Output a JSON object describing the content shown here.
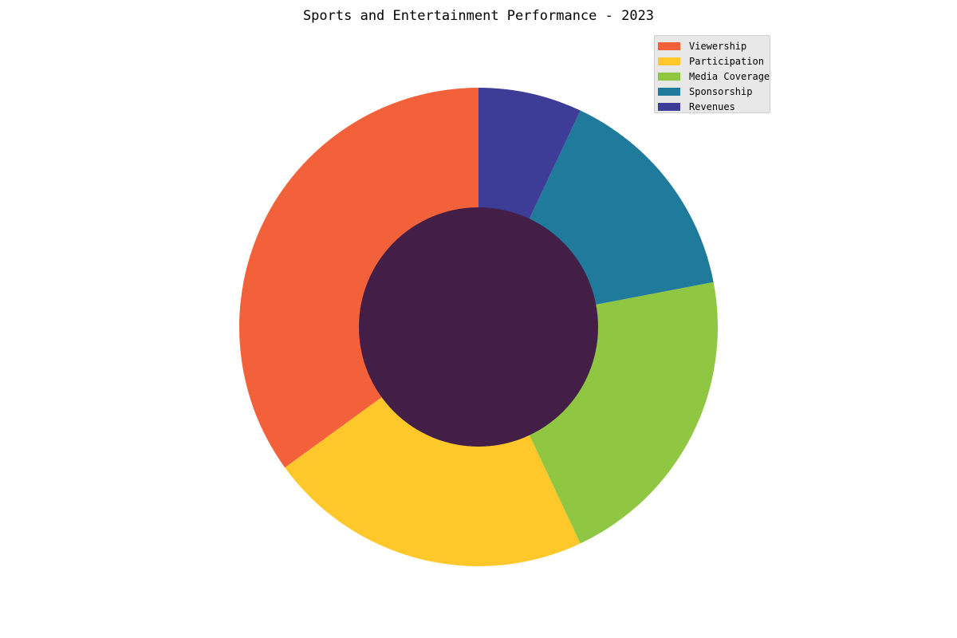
{
  "chart_data": {
    "type": "pie",
    "style": "donut",
    "title": "Sports and Entertainment Performance - 2023",
    "categories": [
      "Viewership",
      "Participation",
      "Media Coverage",
      "Sponsorship",
      "Revenues"
    ],
    "values": [
      35,
      22,
      21,
      15,
      7
    ],
    "colors": [
      "#f26139",
      "#ffc82a",
      "#8fc742",
      "#1f7a9c",
      "#3d3d98"
    ],
    "center_color": "#431f47",
    "start_angle_deg": 90,
    "direction": "counterclockwise",
    "legend_position": "top-right",
    "grid": false
  }
}
